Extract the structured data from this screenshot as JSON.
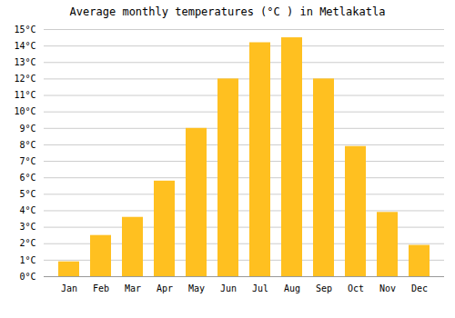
{
  "chart_data": {
    "type": "bar",
    "title": "Average monthly temperatures (°C ) in Metlakatla",
    "categories": [
      "Jan",
      "Feb",
      "Mar",
      "Apr",
      "May",
      "Jun",
      "Jul",
      "Aug",
      "Sep",
      "Oct",
      "Nov",
      "Dec"
    ],
    "values": [
      0.9,
      2.5,
      3.6,
      5.8,
      9.0,
      12.0,
      14.2,
      14.5,
      12.0,
      7.9,
      3.9,
      1.9
    ],
    "color": "#FFC020",
    "ylim": [
      0,
      15
    ],
    "yticks": [
      {
        "value": 0,
        "label": "0°C"
      },
      {
        "value": 1,
        "label": "1°C"
      },
      {
        "value": 2,
        "label": "2°C"
      },
      {
        "value": 3,
        "label": "3°C"
      },
      {
        "value": 4,
        "label": "4°C"
      },
      {
        "value": 5,
        "label": "5°C"
      },
      {
        "value": 6,
        "label": "6°C"
      },
      {
        "value": 7,
        "label": "7°C"
      },
      {
        "value": 8,
        "label": "8°C"
      },
      {
        "value": 9,
        "label": "9°C"
      },
      {
        "value": 10,
        "label": "10°C"
      },
      {
        "value": 11,
        "label": "11°C"
      },
      {
        "value": 12,
        "label": "12°C"
      },
      {
        "value": 13,
        "label": "13°C"
      },
      {
        "value": 14,
        "label": "14°C"
      },
      {
        "value": 15,
        "label": "15°C"
      }
    ],
    "grid": true
  }
}
